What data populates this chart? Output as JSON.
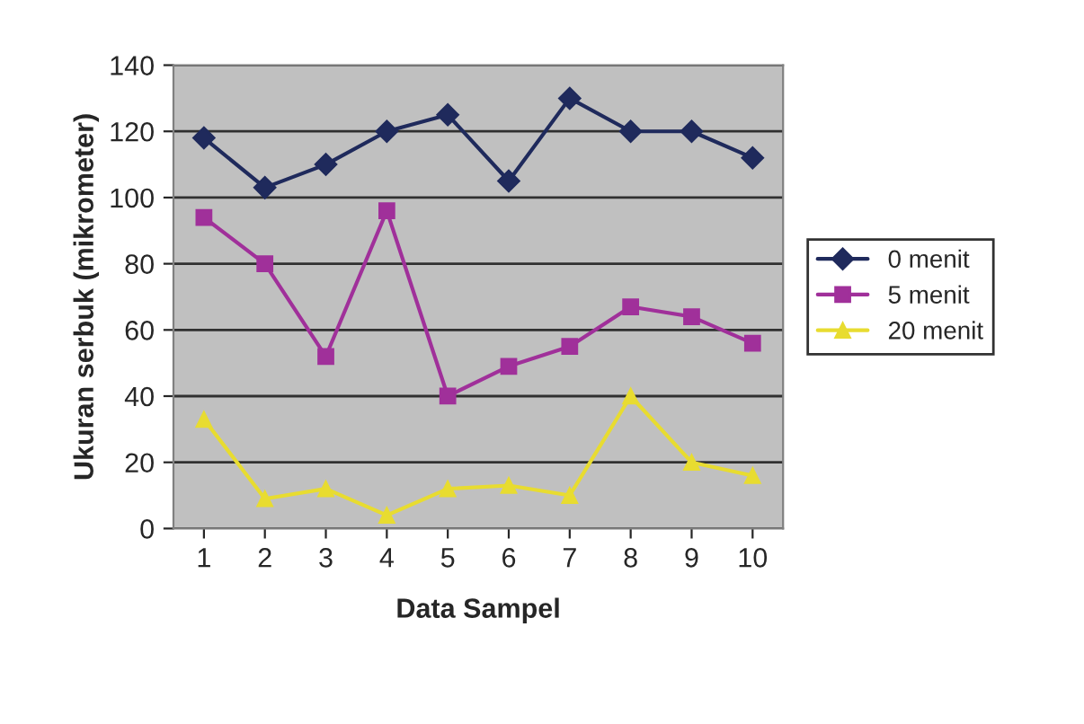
{
  "chart_data": {
    "type": "line",
    "xlabel": "Data Sampel",
    "ylabel": "Ukuran serbuk (mikrometer)",
    "categories": [
      "1",
      "2",
      "3",
      "4",
      "5",
      "6",
      "7",
      "8",
      "9",
      "10"
    ],
    "series": [
      {
        "name": "0 menit",
        "color": "#1f2a5c",
        "marker": "diamond",
        "values": [
          118,
          103,
          110,
          120,
          125,
          105,
          130,
          120,
          120,
          112
        ]
      },
      {
        "name": "5 menit",
        "color": "#a0309a",
        "marker": "square",
        "values": [
          94,
          80,
          52,
          96,
          40,
          49,
          55,
          67,
          64,
          56
        ]
      },
      {
        "name": "20 menit",
        "color": "#e8dc30",
        "marker": "triangle",
        "values": [
          33,
          9,
          12,
          4,
          12,
          13,
          10,
          40,
          20,
          16
        ]
      }
    ],
    "ylim": [
      0,
      140
    ],
    "yticks": [
      0,
      20,
      40,
      60,
      80,
      100,
      120,
      140
    ],
    "grid": "y",
    "legend": "right",
    "line_style": "solid"
  }
}
